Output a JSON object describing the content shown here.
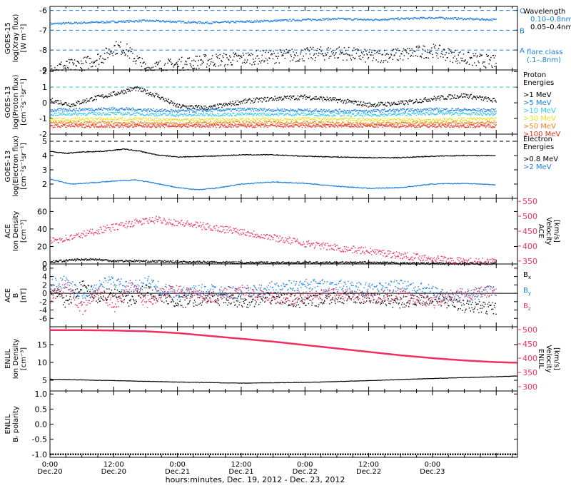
{
  "time_axis": {
    "tick_labels": [
      {
        "time": "0:00",
        "date": "Dec.20"
      },
      {
        "time": "12:00",
        "date": "Dec.20"
      },
      {
        "time": "0:00",
        "date": "Dec.21"
      },
      {
        "time": "12:00",
        "date": "Dec.21"
      },
      {
        "time": "0:00",
        "date": "Dec.22"
      },
      {
        "time": "12:00",
        "date": "Dec.22"
      },
      {
        "time": "0:00",
        "date": "Dec.23"
      }
    ],
    "xlabel": "hours:minutes, Dec. 19, 2012 - Dec. 23, 2012"
  },
  "colors": {
    "black": "#000000",
    "blue": "#1a7fe0",
    "cyan": "#30c8e8",
    "red": "#f03060",
    "green": "#20c060",
    "yellow": "#e8e020",
    "orange": "#f08020",
    "scarlet": "#e83020"
  },
  "chart_data": [
    {
      "id": "xray",
      "type": "scatter",
      "ylabel": [
        "GOES-15",
        "log(Xray flux)",
        "[W m⁻²]"
      ],
      "ylim": [
        -9,
        -5.8
      ],
      "yticks": [
        -9,
        -8,
        -7,
        -6
      ],
      "reference_lines": [
        {
          "y": -6,
          "label": "C",
          "color": "#1a7fe0"
        },
        {
          "y": -7,
          "label": "B",
          "color": "#1a7fe0"
        },
        {
          "y": -8,
          "label": "A",
          "color": "#1a7fe0"
        }
      ],
      "legend": {
        "title": "Wavelength",
        "entries": [
          {
            "text": "0.10–0.8nm",
            "color": "#1a7fe0"
          },
          {
            "text": "0.05–0.4nm",
            "color": "#000000"
          }
        ]
      },
      "legend_extra": {
        "text": "flare class",
        "sub": "(.1–.8nm)",
        "color": "#1a7fe0"
      },
      "series": [
        {
          "name": "0.10–0.8nm",
          "color": "#1a7fe0",
          "x": [
            0,
            6,
            12,
            18,
            24,
            30,
            36,
            42,
            48,
            54,
            60,
            66,
            72,
            78,
            84
          ],
          "y": [
            -6.65,
            -6.6,
            -6.55,
            -6.5,
            -6.55,
            -6.6,
            -6.55,
            -6.5,
            -6.45,
            -6.4,
            -6.45,
            -6.4,
            -6.35,
            -6.4,
            -6.45
          ]
        },
        {
          "name": "0.05–0.4nm",
          "color": "#000000",
          "x": [
            0,
            6,
            10,
            12,
            14,
            16,
            18,
            24,
            30,
            36,
            42,
            48,
            54,
            60,
            66,
            72,
            78,
            84
          ],
          "y": [
            -8.9,
            -8.7,
            -8.3,
            -7.85,
            -7.9,
            -8.4,
            -8.9,
            -8.7,
            -8.5,
            -8.4,
            -8.3,
            -8.2,
            -8.1,
            -8.3,
            -8.2,
            -8.0,
            -8.4,
            -8.6
          ]
        }
      ]
    },
    {
      "id": "proton",
      "type": "scatter",
      "ylabel": [
        "GOES-13",
        "log(Proton flux)",
        "[cm⁻²s⁻¹sr⁻¹]"
      ],
      "ylim": [
        -2,
        2.1
      ],
      "yticks": [
        -2,
        -1,
        0,
        1,
        2
      ],
      "reference_lines": [
        {
          "y": 1,
          "color": "#30c8e8"
        }
      ],
      "legend": {
        "title": "Proton",
        "title2": "Energies",
        "entries": [
          {
            "text": ">1 MeV",
            "color": "#000000"
          },
          {
            "text": ">5 MeV",
            "color": "#1a7fe0"
          },
          {
            "text": ">10 MeV",
            "color": "#30c8e8"
          },
          {
            "text": ">30 MeV",
            "color": "#e8e020"
          },
          {
            "text": ">50 MeV",
            "color": "#f08020"
          },
          {
            "text": ">100 MeV",
            "color": "#e83020"
          }
        ]
      },
      "series": [
        {
          "name": ">1 MeV",
          "color": "#000000",
          "x": [
            0,
            4,
            8,
            12,
            16,
            20,
            24,
            30,
            36,
            42,
            48,
            54,
            60,
            66,
            72,
            78,
            84
          ],
          "y": [
            0.2,
            -0.1,
            0.3,
            0.6,
            0.95,
            0.5,
            -0.2,
            -0.3,
            0.1,
            0.3,
            0.4,
            0.2,
            -0.1,
            0.0,
            0.3,
            0.5,
            0.15
          ]
        },
        {
          "name": ">5 MeV",
          "color": "#1a7fe0",
          "x": [
            0,
            12,
            24,
            36,
            48,
            60,
            72,
            84
          ],
          "y": [
            -0.45,
            -0.35,
            -0.5,
            -0.4,
            -0.45,
            -0.5,
            -0.4,
            -0.45
          ]
        },
        {
          "name": ">10 MeV",
          "color": "#30c8e8",
          "x": [
            0,
            12,
            24,
            36,
            48,
            60,
            72,
            84
          ],
          "y": [
            -0.7,
            -0.65,
            -0.75,
            -0.7,
            -0.7,
            -0.75,
            -0.65,
            -0.7
          ]
        },
        {
          "name": ">30 MeV",
          "color": "#e8e020",
          "x": [
            0,
            12,
            24,
            36,
            48,
            60,
            72,
            84
          ],
          "y": [
            -1.05,
            -1.0,
            -1.05,
            -1.05,
            -1.0,
            -1.05,
            -1.05,
            -1.0
          ]
        },
        {
          "name": ">50 MeV",
          "color": "#f08020",
          "x": [
            0,
            12,
            24,
            36,
            48,
            60,
            72,
            84
          ],
          "y": [
            -1.25,
            -1.25,
            -1.3,
            -1.25,
            -1.25,
            -1.3,
            -1.25,
            -1.25
          ]
        },
        {
          "name": ">100 MeV",
          "color": "#e83020",
          "x": [
            0,
            12,
            24,
            36,
            48,
            60,
            72,
            84
          ],
          "y": [
            -1.45,
            -1.45,
            -1.45,
            -1.45,
            -1.45,
            -1.45,
            -1.45,
            -1.45
          ]
        }
      ]
    },
    {
      "id": "electron",
      "type": "line",
      "ylabel": [
        "GOES-13",
        "log(Electron flux)",
        "[cm⁻²s⁻¹sr⁻¹]"
      ],
      "ylim": [
        1,
        5.5
      ],
      "yticks": [
        2,
        3,
        4,
        5
      ],
      "reference_lines": [
        {
          "y": 5,
          "color": "#000000"
        }
      ],
      "legend": {
        "title": "Electron",
        "title2": "Energies",
        "entries": [
          {
            "text": ">0.8 MeV",
            "color": "#000000"
          },
          {
            "text": ">2 MeV",
            "color": "#1a7fe0"
          }
        ]
      },
      "series": [
        {
          "name": ">0.8 MeV",
          "color": "#000000",
          "x": [
            0,
            3,
            6,
            10,
            14,
            17,
            20,
            24,
            30,
            36,
            42,
            48,
            54,
            60,
            66,
            72,
            78,
            84
          ],
          "y": [
            4.3,
            4.15,
            4.25,
            4.3,
            4.45,
            4.3,
            4.05,
            3.9,
            3.95,
            4.05,
            4.05,
            3.95,
            3.9,
            3.85,
            3.85,
            3.95,
            4.0,
            4.0
          ]
        },
        {
          "name": ">2 MeV",
          "color": "#1a7fe0",
          "x": [
            0,
            4,
            8,
            12,
            16,
            20,
            24,
            28,
            32,
            36,
            42,
            48,
            54,
            60,
            66,
            72,
            78,
            84
          ],
          "y": [
            2.35,
            2.0,
            2.1,
            2.2,
            2.3,
            2.05,
            1.75,
            1.6,
            1.75,
            2.0,
            2.15,
            2.05,
            1.85,
            1.7,
            1.75,
            2.0,
            2.05,
            1.95
          ]
        }
      ]
    },
    {
      "id": "ace_density",
      "type": "scatter",
      "ylabel": [
        "ACE",
        "Ion Density",
        "[cm⁻³]"
      ],
      "ylim": [
        0,
        75
      ],
      "yticks": [
        0,
        20,
        40,
        60
      ],
      "ylabel_right": [
        "ACE",
        "Velocity",
        "[km/s]"
      ],
      "ylim_right": [
        340,
        560
      ],
      "yticks_right": [
        350,
        400,
        450,
        500,
        550
      ],
      "series": [
        {
          "name": "Ion Density",
          "color": "#000000",
          "axis": "left",
          "x": [
            0,
            4,
            8,
            12,
            16,
            24,
            36,
            48,
            60,
            72,
            84
          ],
          "y": [
            3,
            5,
            6,
            4,
            4,
            3,
            2,
            2,
            2,
            1,
            1
          ]
        },
        {
          "name": "Velocity",
          "color": "#f03060",
          "axis": "right",
          "x": [
            0,
            4,
            8,
            12,
            16,
            20,
            24,
            30,
            36,
            42,
            48,
            54,
            60,
            66,
            72,
            78,
            84
          ],
          "y": [
            420,
            430,
            450,
            465,
            480,
            490,
            480,
            465,
            450,
            430,
            410,
            395,
            385,
            370,
            360,
            350,
            348
          ]
        }
      ]
    },
    {
      "id": "ace_b",
      "type": "scatter",
      "ylabel": [
        "ACE",
        "B",
        "[nT]"
      ],
      "ylim": [
        -8,
        7
      ],
      "yticks": [
        -6,
        -4,
        -2,
        0,
        2,
        4,
        6
      ],
      "zero_line": true,
      "legend": {
        "entries": [
          {
            "text": "B",
            "sub": "x",
            "color": "#000000"
          },
          {
            "text": "B",
            "sub": "y",
            "color": "#1a7fe0"
          },
          {
            "text": "B",
            "sub": "z",
            "color": "#f03060"
          }
        ]
      },
      "series": [
        {
          "name": "Bx",
          "color": "#000000",
          "x": [
            0,
            3,
            6,
            9,
            12,
            15,
            18,
            21,
            24,
            30,
            36,
            42,
            48,
            54,
            60,
            66,
            72,
            78,
            84
          ],
          "y": [
            1,
            -2,
            2,
            -1,
            0,
            -2,
            1,
            -1,
            -2,
            -1,
            -2,
            -1,
            -2,
            -1,
            -1,
            -2,
            -1,
            -3,
            -3.5
          ]
        },
        {
          "name": "By",
          "color": "#1a7fe0",
          "x": [
            0,
            3,
            6,
            9,
            12,
            15,
            18,
            21,
            24,
            30,
            36,
            42,
            48,
            54,
            60,
            66,
            72,
            78,
            84
          ],
          "y": [
            2,
            3,
            -1,
            2,
            3,
            1,
            3,
            1,
            0,
            1,
            0,
            1.5,
            2,
            2,
            1,
            2,
            0.5,
            -1,
            1
          ]
        },
        {
          "name": "Bz",
          "color": "#f03060",
          "x": [
            0,
            3,
            6,
            9,
            12,
            15,
            18,
            21,
            24,
            30,
            36,
            42,
            48,
            54,
            60,
            66,
            72,
            78,
            84
          ],
          "y": [
            -1,
            2,
            -4,
            1,
            -3,
            2,
            -2,
            0,
            1,
            -1,
            1,
            -1,
            -1,
            0,
            -1,
            0,
            -2,
            0,
            0.5
          ]
        }
      ]
    },
    {
      "id": "enlil_density",
      "type": "line",
      "ylabel": [
        "ENLIL",
        "Ion Density",
        "[cm⁻³]"
      ],
      "ylim": [
        2,
        20
      ],
      "yticks": [
        5,
        10,
        15
      ],
      "ylabel_right": [
        "ENLIL",
        "Velocity",
        "[km/s]"
      ],
      "ylim_right": [
        285,
        510
      ],
      "yticks_right": [
        300,
        350,
        400,
        450,
        500
      ],
      "series": [
        {
          "name": "Ion Density",
          "color": "#000000",
          "axis": "left",
          "x": [
            0,
            12,
            24,
            36,
            48,
            60,
            72,
            84,
            88
          ],
          "y": [
            5.3,
            4.9,
            4.5,
            4.2,
            4.4,
            4.9,
            5.5,
            6.0,
            6.2
          ]
        },
        {
          "name": "Velocity",
          "color": "#f03060",
          "axis": "right",
          "x": [
            0,
            6,
            12,
            18,
            24,
            30,
            36,
            42,
            48,
            54,
            60,
            66,
            72,
            78,
            84,
            88
          ],
          "y": [
            498,
            498,
            497,
            494,
            488,
            478,
            468,
            458,
            446,
            434,
            422,
            410,
            400,
            392,
            386,
            384
          ]
        }
      ]
    },
    {
      "id": "enlil_polarity",
      "type": "line",
      "ylabel": [
        "ENLIL",
        "Bᵣ polarity"
      ],
      "ylim": [
        -1.1,
        1.1
      ],
      "yticks": [
        -1.0,
        -0.5,
        0.0,
        0.5,
        1.0
      ],
      "series": [
        {
          "name": "Br polarity",
          "color": "#000000",
          "x": [
            0,
            88
          ],
          "y": [
            -1.0,
            -1.0
          ]
        }
      ]
    }
  ]
}
